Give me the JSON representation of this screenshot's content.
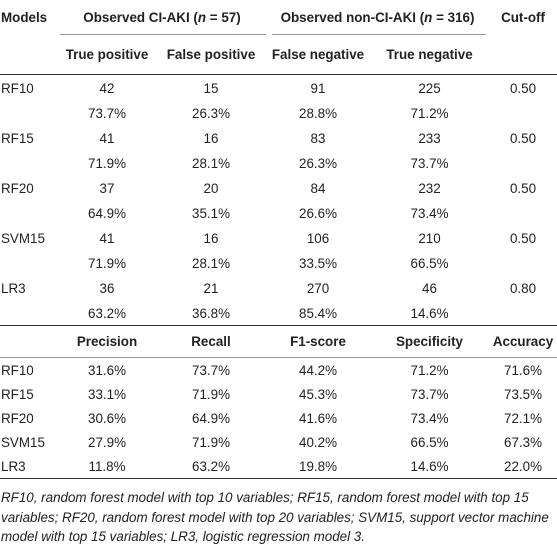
{
  "header": {
    "models": "Models",
    "observed_ci_aki": "Observed CI-AKI (",
    "observed_ci_aki_n": "n",
    "observed_ci_aki_rest": " = 57)",
    "observed_non_ci_aki": "Observed non-CI-AKI (",
    "observed_non_ci_aki_n": "n",
    "observed_non_ci_aki_rest": " = 316)",
    "cutoff": "Cut-off"
  },
  "subheader": {
    "tp": "True positive",
    "fp": "False positive",
    "fn": "False negative",
    "tn": "True negative"
  },
  "confusion_rows": [
    {
      "name": "RF10",
      "tp": "42",
      "fp": "15",
      "fn": "91",
      "tn": "225",
      "cutoff": "0.50",
      "tp_pct": "73.7%",
      "fp_pct": "26.3%",
      "fn_pct": "28.8%",
      "tn_pct": "71.2%"
    },
    {
      "name": "RF15",
      "tp": "41",
      "fp": "16",
      "fn": "83",
      "tn": "233",
      "cutoff": "0.50",
      "tp_pct": "71.9%",
      "fp_pct": "28.1%",
      "fn_pct": "26.3%",
      "tn_pct": "73.7%"
    },
    {
      "name": "RF20",
      "tp": "37",
      "fp": "20",
      "fn": "84",
      "tn": "232",
      "cutoff": "0.50",
      "tp_pct": "64.9%",
      "fp_pct": "35.1%",
      "fn_pct": "26.6%",
      "tn_pct": "73.4%"
    },
    {
      "name": "SVM15",
      "tp": "41",
      "fp": "16",
      "fn": "106",
      "tn": "210",
      "cutoff": "0.50",
      "tp_pct": "71.9%",
      "fp_pct": "28.1%",
      "fn_pct": "33.5%",
      "tn_pct": "66.5%"
    },
    {
      "name": "LR3",
      "tp": "36",
      "fp": "21",
      "fn": "270",
      "tn": "46",
      "cutoff": "0.80",
      "tp_pct": "63.2%",
      "fp_pct": "36.8%",
      "fn_pct": "85.4%",
      "tn_pct": "14.6%"
    }
  ],
  "metrics_header": {
    "precision": "Precision",
    "recall": "Recall",
    "f1": "F1-score",
    "specificity": "Specificity",
    "accuracy": "Accuracy"
  },
  "metrics_rows": [
    {
      "name": "RF10",
      "precision": "31.6%",
      "recall": "73.7%",
      "f1": "44.2%",
      "specificity": "71.2%",
      "accuracy": "71.6%"
    },
    {
      "name": "RF15",
      "precision": "33.1%",
      "recall": "71.9%",
      "f1": "45.3%",
      "specificity": "73.7%",
      "accuracy": "73.5%"
    },
    {
      "name": "RF20",
      "precision": "30.6%",
      "recall": "64.9%",
      "f1": "41.6%",
      "specificity": "73.4%",
      "accuracy": "72.1%"
    },
    {
      "name": "SVM15",
      "precision": "27.9%",
      "recall": "71.9%",
      "f1": "40.2%",
      "specificity": "66.5%",
      "accuracy": "67.3%"
    },
    {
      "name": "LR3",
      "precision": "11.8%",
      "recall": "63.2%",
      "f1": "19.8%",
      "specificity": "14.6%",
      "accuracy": "22.0%"
    }
  ],
  "footnote": "RF10, random forest model with top 10 variables; RF15, random forest model with top 15 variables; RF20, random forest model with top 20 variables; SVM15, support vector machine model with top 15 variables; LR3, logistic regression model 3."
}
